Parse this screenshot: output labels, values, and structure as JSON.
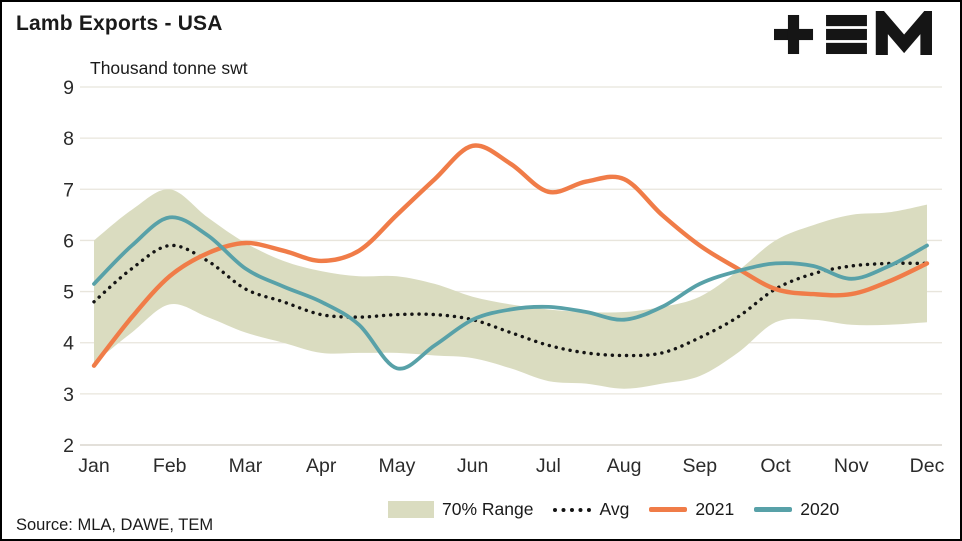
{
  "title": "Lamb Exports - USA",
  "subtitle": "Thousand tonne swt",
  "source": "Source: MLA, DAWE, TEM",
  "logo": "tem-logo",
  "colors": {
    "band": "#dadcc0",
    "avg": "#141414",
    "series_2021": "#f07c48",
    "series_2020": "#58a1a8",
    "gridline": "#e8e5dc",
    "baseline": "#d2cec3",
    "tick_text": "#2b2b2b"
  },
  "chart_data": {
    "type": "line",
    "title": "Lamb Exports - USA",
    "ylabel": "Thousand tonne swt",
    "ylim": [
      2,
      9
    ],
    "yticks": [
      2,
      3,
      4,
      5,
      6,
      7,
      8,
      9
    ],
    "x_labels": [
      "Jan",
      "Feb",
      "Mar",
      "Apr",
      "May",
      "Jun",
      "Jul",
      "Aug",
      "Sep",
      "Oct",
      "Nov",
      "Dec"
    ],
    "x": [
      0,
      0.5,
      1,
      1.5,
      2,
      2.5,
      3,
      3.5,
      4,
      4.5,
      5,
      5.5,
      6,
      6.5,
      7,
      7.5,
      8,
      8.5,
      9,
      9.5,
      10,
      10.5,
      11
    ],
    "band": {
      "name": "70% Range",
      "color": "#dadcc0",
      "upper": [
        6.0,
        6.6,
        7.0,
        6.45,
        5.95,
        5.6,
        5.4,
        5.3,
        5.3,
        5.15,
        4.9,
        4.75,
        4.65,
        4.6,
        4.6,
        4.7,
        4.9,
        5.4,
        6.0,
        6.3,
        6.5,
        6.55,
        6.7
      ],
      "lower": [
        3.6,
        4.2,
        4.75,
        4.5,
        4.2,
        4.0,
        3.8,
        3.8,
        3.8,
        3.75,
        3.7,
        3.5,
        3.25,
        3.2,
        3.1,
        3.2,
        3.35,
        3.8,
        4.4,
        4.45,
        4.35,
        4.35,
        4.4
      ]
    },
    "series": [
      {
        "name": "Avg",
        "style": "dotted",
        "color": "#141414",
        "values": [
          4.8,
          5.45,
          5.9,
          5.6,
          5.05,
          4.8,
          4.55,
          4.5,
          4.55,
          4.55,
          4.45,
          4.2,
          3.95,
          3.8,
          3.75,
          3.8,
          4.1,
          4.5,
          5.05,
          5.35,
          5.5,
          5.55,
          5.55
        ]
      },
      {
        "name": "2021",
        "style": "solid",
        "color": "#f07c48",
        "values": [
          3.55,
          4.5,
          5.3,
          5.75,
          5.95,
          5.8,
          5.6,
          5.8,
          6.5,
          7.2,
          7.85,
          7.5,
          6.95,
          7.15,
          7.2,
          6.5,
          5.9,
          5.45,
          5.05,
          4.95,
          4.95,
          5.2,
          5.55
        ]
      },
      {
        "name": "2020",
        "style": "solid",
        "color": "#58a1a8",
        "values": [
          5.15,
          5.9,
          6.45,
          6.1,
          5.45,
          5.1,
          4.8,
          4.35,
          3.5,
          3.95,
          4.45,
          4.65,
          4.7,
          4.6,
          4.45,
          4.7,
          5.15,
          5.4,
          5.55,
          5.5,
          5.25,
          5.5,
          5.9
        ]
      }
    ],
    "legend": [
      "70% Range",
      "Avg",
      "2021",
      "2020"
    ],
    "legend_position": "bottom",
    "grid": "horizontal"
  }
}
